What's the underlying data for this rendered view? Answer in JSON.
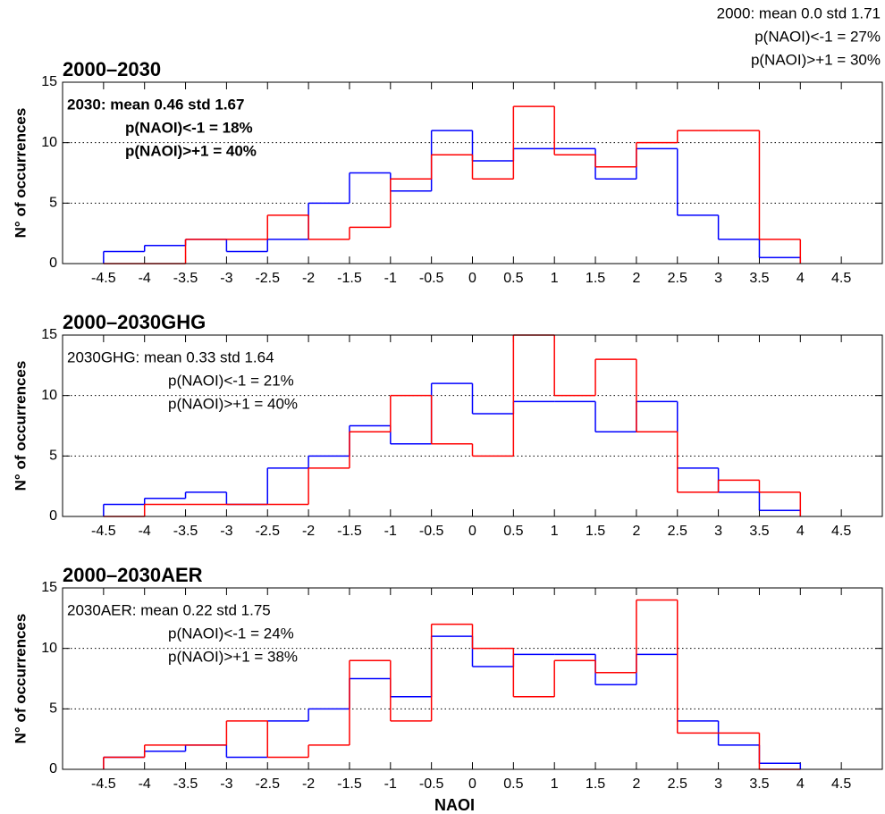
{
  "chart_data": [
    {
      "type": "histogram",
      "title": "2000–2030",
      "ylabel": "N° of occurrences",
      "header_note": [
        "2000: mean 0.0 std 1.71",
        "p(NAOI)<-1 = 27%",
        "p(NAOI)>+1 = 30%"
      ],
      "note": [
        "2030: mean 0.46 std 1.67",
        "p(NAOI)<-1 = 18%",
        "p(NAOI)>+1 = 40%"
      ],
      "note_bold": true,
      "bins": [
        -4.5,
        -4,
        -3.5,
        -3,
        -2.5,
        -2,
        -1.5,
        -1,
        -0.5,
        0,
        0.5,
        1,
        1.5,
        2,
        2.5,
        3,
        3.5,
        4
      ],
      "series": [
        {
          "color": "#0000ff",
          "values": [
            1,
            1.5,
            2,
            1,
            2,
            5,
            7.5,
            6,
            11,
            8.5,
            9.5,
            9.5,
            7,
            9.5,
            4,
            2,
            0.5
          ]
        },
        {
          "color": "#ff0000",
          "values": [
            0,
            0,
            2,
            2,
            4,
            2,
            3,
            7,
            9,
            7,
            13,
            9,
            8,
            10,
            11,
            11,
            2
          ]
        }
      ],
      "xlim": [
        -5,
        5
      ],
      "ylim": [
        0,
        15
      ],
      "xticks": [
        -4.5,
        -4,
        -3.5,
        -3,
        -2.5,
        -2,
        -1.5,
        -1,
        -0.5,
        0,
        0.5,
        1,
        1.5,
        2,
        2.5,
        3,
        3.5,
        4,
        4.5
      ],
      "yticks": [
        0,
        5,
        10,
        15
      ],
      "grid": true
    },
    {
      "type": "histogram",
      "title": "2000–2030GHG",
      "ylabel": "N° of occurrences",
      "note": [
        "2030GHG: mean 0.33 std 1.64",
        "p(NAOI)<-1 = 21%",
        "p(NAOI)>+1 = 40%"
      ],
      "note_bold": false,
      "bins": [
        -4.5,
        -4,
        -3.5,
        -3,
        -2.5,
        -2,
        -1.5,
        -1,
        -0.5,
        0,
        0.5,
        1,
        1.5,
        2,
        2.5,
        3,
        3.5,
        4
      ],
      "series": [
        {
          "color": "#0000ff",
          "values": [
            1,
            1.5,
            2,
            1,
            4,
            5,
            7.5,
            6,
            11,
            8.5,
            9.5,
            9.5,
            7,
            9.5,
            4,
            2,
            0.5
          ]
        },
        {
          "color": "#ff0000",
          "values": [
            0,
            1,
            1,
            1,
            1,
            4,
            7,
            10,
            6,
            5,
            15,
            10,
            13,
            7,
            2,
            3,
            2
          ]
        }
      ],
      "xlim": [
        -5,
        5
      ],
      "ylim": [
        0,
        15
      ],
      "xticks": [
        -4.5,
        -4,
        -3.5,
        -3,
        -2.5,
        -2,
        -1.5,
        -1,
        -0.5,
        0,
        0.5,
        1,
        1.5,
        2,
        2.5,
        3,
        3.5,
        4,
        4.5
      ],
      "yticks": [
        0,
        5,
        10,
        15
      ],
      "grid": true
    },
    {
      "type": "histogram",
      "title": "2000–2030AER",
      "ylabel": "N° of occurrences",
      "xlabel": "NAOI",
      "note": [
        "2030AER: mean 0.22 std 1.75",
        "p(NAOI)<-1 = 24%",
        "p(NAOI)>+1 = 38%"
      ],
      "note_bold": false,
      "bins": [
        -4.5,
        -4,
        -3.5,
        -3,
        -2.5,
        -2,
        -1.5,
        -1,
        -0.5,
        0,
        0.5,
        1,
        1.5,
        2,
        2.5,
        3,
        3.5,
        4
      ],
      "series": [
        {
          "color": "#0000ff",
          "values": [
            1,
            1.5,
            2,
            1,
            4,
            5,
            7.5,
            6,
            11,
            8.5,
            9.5,
            9.5,
            7,
            9.5,
            4,
            2,
            0.5
          ]
        },
        {
          "color": "#ff0000",
          "values": [
            1,
            2,
            2,
            4,
            1,
            2,
            9,
            4,
            12,
            10,
            6,
            9,
            8,
            14,
            3,
            3,
            0
          ]
        }
      ],
      "xlim": [
        -5,
        5
      ],
      "ylim": [
        0,
        15
      ],
      "xticks": [
        -4.5,
        -4,
        -3.5,
        -3,
        -2.5,
        -2,
        -1.5,
        -1,
        -0.5,
        0,
        0.5,
        1,
        1.5,
        2,
        2.5,
        3,
        3.5,
        4,
        4.5
      ],
      "yticks": [
        0,
        5,
        10,
        15
      ],
      "grid": true
    }
  ]
}
